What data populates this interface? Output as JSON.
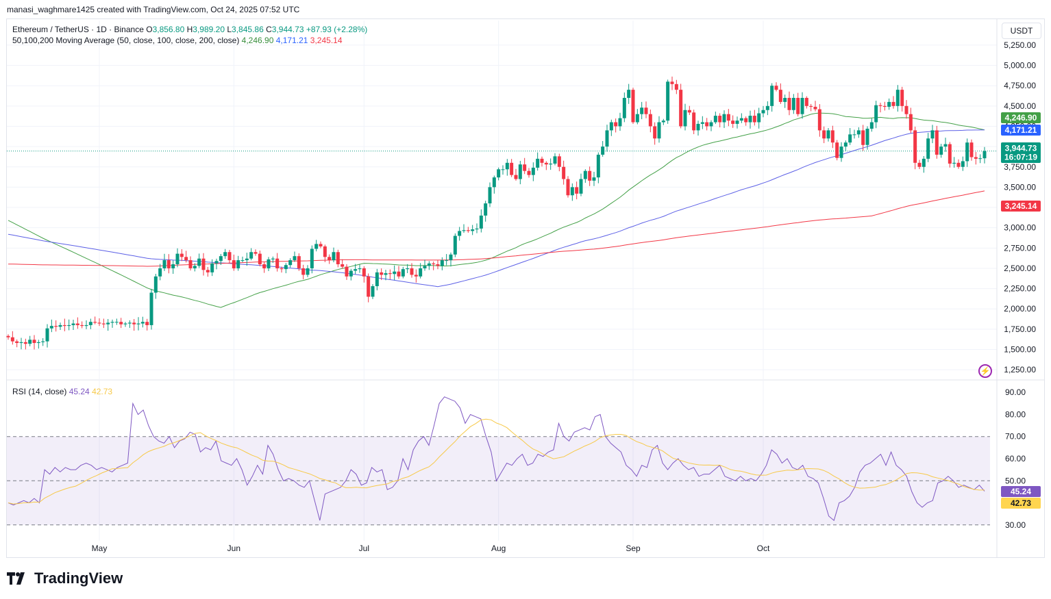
{
  "caption": "manasi_waghmare1425 created with TradingView.com, Oct 24, 2025 07:52 UTC",
  "legend": {
    "symbol": "Ethereum / TetherUS · 1D · Binance",
    "o_label": "O",
    "o_value": "3,856.80",
    "h_label": "H",
    "h_value": "3,989.20",
    "l_label": "L",
    "l_value": "3,845.86",
    "c_label": "C",
    "c_value": "3,944.73",
    "change": "+87.93 (+2.28%)",
    "ma_title": "50,100,200 Moving Average (50, close, 100, close, 200, close)",
    "ma50": "4,246.90",
    "ma100": "4,171.21",
    "ma200": "3,245.14",
    "rsi_title": "RSI (14, close)",
    "rsi_value": "45.24",
    "rsi_ma_value": "42.73"
  },
  "currency_button": "USDT",
  "brand": "TradingView",
  "colors": {
    "up": "#089981",
    "down": "#f23645",
    "ma50": "#43a047",
    "ma100": "#5b5fe6",
    "ma200": "#f23645",
    "rsi": "#7e57c2",
    "rsi_ma": "#f7c948",
    "current_price": "#089981"
  },
  "chart_data": [
    {
      "type": "candlestick",
      "title": "Ethereum / TetherUS · 1D · Binance",
      "x_ticks": [
        "May",
        "Jun",
        "Jul",
        "Aug",
        "Sep",
        "Oct"
      ],
      "y_ticks": [
        "1,250.00",
        "1,500.00",
        "1,750.00",
        "2,000.00",
        "2,250.00",
        "2,500.00",
        "2,750.00",
        "3,000.00",
        "3,250.00",
        "3,500.00",
        "3,750.00",
        "4,000.00",
        "4,250.00",
        "4,500.00",
        "4,750.00",
        "5,000.00",
        "5,250.00"
      ],
      "ylim": [
        1150,
        5300
      ],
      "start_date": "2025-04-10",
      "closes": [
        1650,
        1600,
        1580,
        1590,
        1570,
        1620,
        1580,
        1590,
        1600,
        1760,
        1790,
        1780,
        1800,
        1790,
        1800,
        1820,
        1800,
        1790,
        1800,
        1840,
        1830,
        1820,
        1810,
        1830,
        1840,
        1840,
        1810,
        1820,
        1830,
        1810,
        1820,
        1840,
        1800,
        2200,
        2400,
        2500,
        2600,
        2500,
        2550,
        2680,
        2640,
        2600,
        2500,
        2530,
        2620,
        2480,
        2450,
        2560,
        2590,
        2650,
        2700,
        2600,
        2500,
        2600,
        2600,
        2620,
        2700,
        2680,
        2550,
        2500,
        2610,
        2620,
        2500,
        2490,
        2540,
        2600,
        2650,
        2500,
        2420,
        2500,
        2740,
        2800,
        2770,
        2640,
        2600,
        2700,
        2550,
        2520,
        2400,
        2470,
        2490,
        2500,
        2400,
        2150,
        2280,
        2450,
        2420,
        2440,
        2430,
        2460,
        2400,
        2490,
        2500,
        2420,
        2400,
        2500,
        2530,
        2560,
        2550,
        2530,
        2600,
        2600,
        2670,
        2900,
        2960,
        2970,
        2960,
        2980,
        2990,
        3150,
        3300,
        3500,
        3620,
        3720,
        3720,
        3800,
        3650,
        3600,
        3780,
        3700,
        3650,
        3740,
        3850,
        3800,
        3780,
        3790,
        3880,
        3750,
        3600,
        3400,
        3500,
        3420,
        3600,
        3700,
        3580,
        3620,
        3900,
        4000,
        4200,
        4300,
        4250,
        4350,
        4600,
        4700,
        4300,
        4400,
        4480,
        4400,
        4250,
        4100,
        4300,
        4320,
        4800,
        4770,
        4700,
        4250,
        4450,
        4420,
        4200,
        4280,
        4300,
        4250,
        4300,
        4380,
        4300,
        4400,
        4320,
        4280,
        4320,
        4350,
        4300,
        4380,
        4300,
        4410,
        4450,
        4500,
        4750,
        4700,
        4550,
        4600,
        4450,
        4600,
        4400,
        4600,
        4500,
        4490,
        4460,
        4200,
        4100,
        4200,
        4050,
        3860,
        4000,
        4050,
        4150,
        4150,
        4200,
        4020,
        4220,
        4300,
        4510,
        4500,
        4490,
        4550,
        4500,
        4700,
        4500,
        4400,
        4200,
        3800,
        3750,
        3850,
        4100,
        4200,
        3900,
        4000,
        4030,
        3790,
        3800,
        3750,
        3820,
        4050,
        3870,
        3850,
        3856,
        3945
      ],
      "series": [
        {
          "name": "MA 50",
          "end_value": 4246.9
        },
        {
          "name": "MA 100",
          "end_value": 4171.21
        },
        {
          "name": "MA 200",
          "end_value": 3245.14
        }
      ],
      "current_price": {
        "value": "3,944.73",
        "countdown": "16:07:19"
      }
    },
    {
      "type": "line",
      "title": "RSI (14, close)",
      "y_ticks": [
        "30.00",
        "40.00",
        "50.00",
        "60.00",
        "70.00",
        "80.00",
        "90.00"
      ],
      "ylim": [
        29,
        91
      ],
      "band": [
        30,
        70
      ],
      "midline": 50,
      "series": [
        {
          "name": "RSI",
          "last": "45.24",
          "values": [
            40,
            39,
            40,
            41,
            40,
            42,
            40,
            55,
            53,
            56,
            54,
            56,
            55,
            55,
            57,
            58,
            57,
            55,
            56,
            55,
            54,
            56,
            57,
            58,
            85,
            80,
            82,
            75,
            70,
            68,
            67,
            70,
            65,
            68,
            69,
            72,
            71,
            63,
            65,
            64,
            68,
            59,
            58,
            57,
            60,
            55,
            48,
            52,
            57,
            53,
            66,
            62,
            55,
            50,
            51,
            50,
            48,
            47,
            50,
            41,
            32,
            44,
            45,
            46,
            47,
            50,
            55,
            53,
            48,
            49,
            56,
            54,
            55,
            46,
            47,
            50,
            60,
            55,
            64,
            68,
            70,
            66,
            75,
            85,
            88,
            87,
            86,
            83,
            76,
            80,
            79,
            78,
            70,
            63,
            50,
            54,
            58,
            57,
            60,
            62,
            57,
            58,
            62,
            61,
            63,
            64,
            76,
            70,
            68,
            72,
            73,
            74,
            73,
            79,
            80,
            70,
            67,
            65,
            63,
            57,
            55,
            52,
            57,
            56,
            64,
            66,
            58,
            55,
            58,
            60,
            57,
            55,
            56,
            52,
            53,
            53,
            55,
            57,
            52,
            51,
            50,
            52,
            50,
            51,
            50,
            53,
            57,
            64,
            62,
            58,
            60,
            56,
            55,
            57,
            52,
            51,
            49,
            42,
            34,
            32,
            40,
            41,
            43,
            47,
            54,
            57,
            58,
            60,
            62,
            57,
            63,
            57,
            55,
            52,
            45,
            40,
            38,
            40,
            41,
            49,
            50,
            52,
            50,
            47,
            48,
            47,
            46,
            48,
            45.24
          ]
        },
        {
          "name": "RSI MA",
          "last": "42.73"
        }
      ]
    }
  ]
}
